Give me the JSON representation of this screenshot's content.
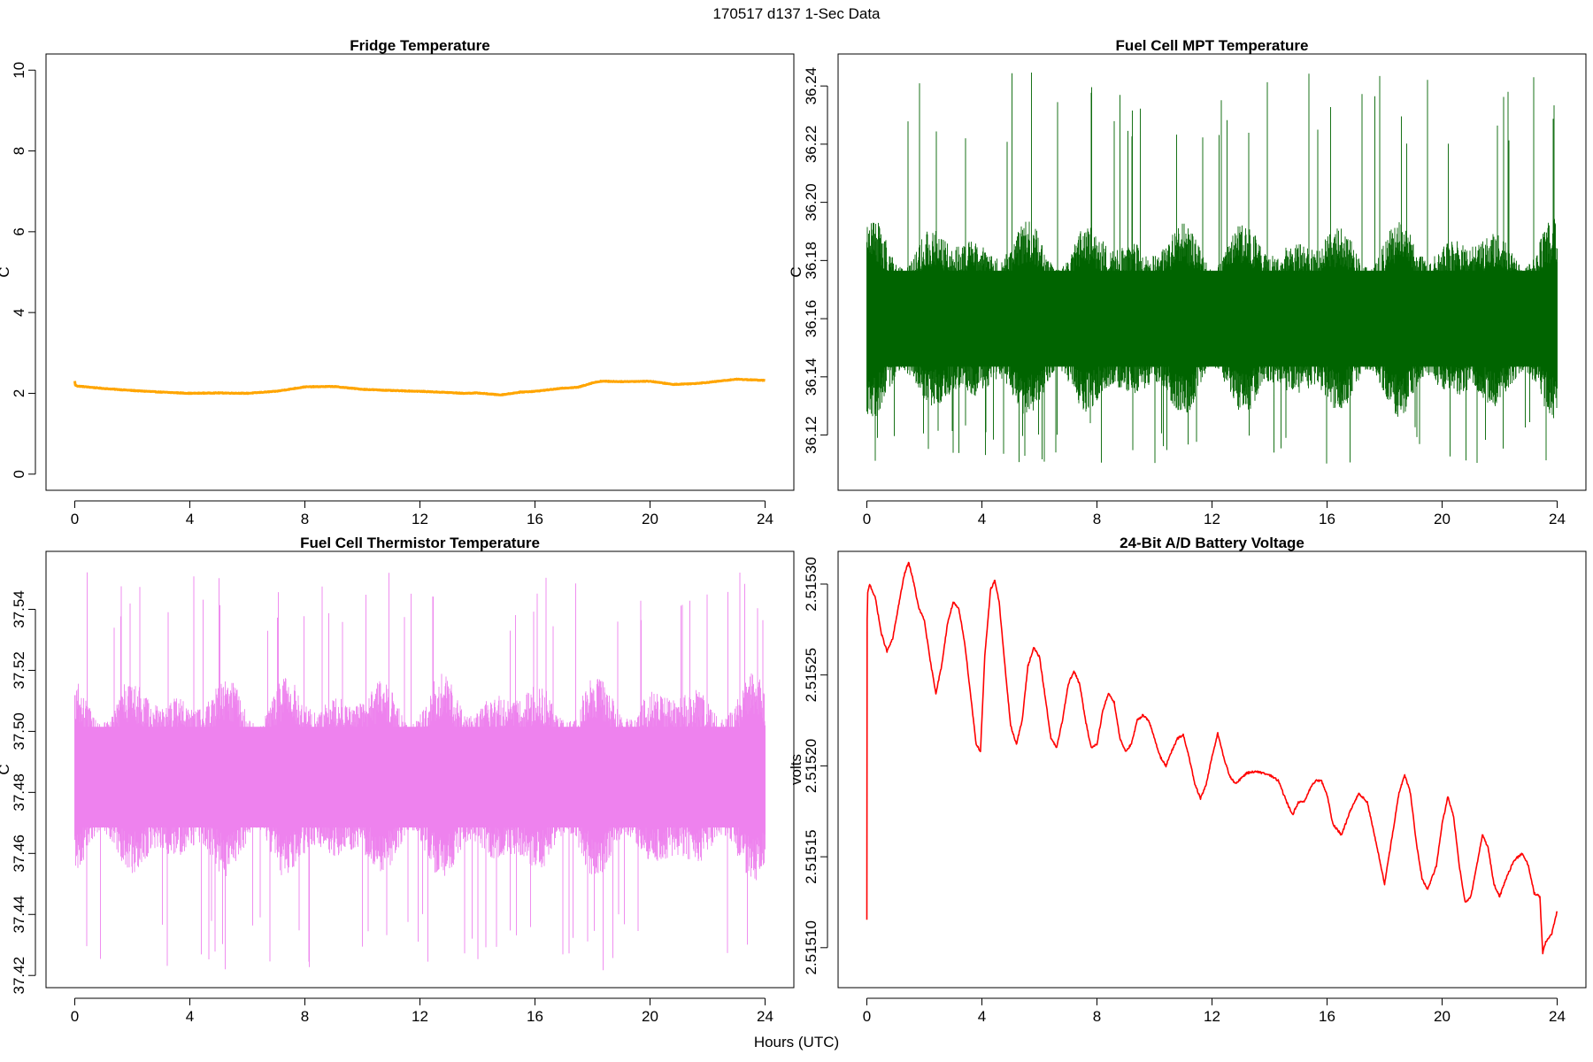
{
  "page": {
    "title": "170517   d137   1-Sec Data",
    "xlabel": "Hours (UTC)"
  },
  "chart_data": [
    {
      "type": "line",
      "title": "Fridge Temperature",
      "ylabel": "C",
      "xlabel": "",
      "color": "#FFA500",
      "xlim": [
        -1,
        25
      ],
      "ylim": [
        -0.4,
        10.4
      ],
      "xticks": [
        "0",
        "4",
        "8",
        "12",
        "16",
        "20",
        "24"
      ],
      "yticks": [
        "0",
        "2",
        "4",
        "6",
        "8",
        "10"
      ],
      "noise": 0.008,
      "grid": false,
      "series": [
        {
          "x": [
            0,
            0.02,
            0.1,
            1,
            2,
            3,
            4,
            5,
            6,
            7,
            8,
            9,
            10,
            11,
            12,
            13,
            13.5,
            14,
            14.8,
            15.5,
            16,
            17,
            17.5,
            18,
            18.3,
            19,
            20,
            20.8,
            21.5,
            22,
            23,
            24
          ],
          "y": [
            2.3,
            2.2,
            2.18,
            2.12,
            2.07,
            2.03,
            2.0,
            2.01,
            2.0,
            2.05,
            2.16,
            2.17,
            2.1,
            2.07,
            2.05,
            2.02,
            2.0,
            2.01,
            1.96,
            2.03,
            2.05,
            2.13,
            2.15,
            2.26,
            2.3,
            2.29,
            2.3,
            2.22,
            2.24,
            2.27,
            2.35,
            2.32
          ]
        }
      ]
    },
    {
      "type": "line",
      "title": "Fuel Cell MPT Temperature",
      "ylabel": "C",
      "xlabel": "",
      "color": "#006400",
      "xlim": [
        -1,
        25
      ],
      "ylim": [
        36.101,
        36.251
      ],
      "xticks": [
        "0",
        "4",
        "8",
        "12",
        "16",
        "20",
        "24"
      ],
      "yticks": [
        "36.12",
        "36.14",
        "36.16",
        "36.18",
        "36.20",
        "36.22",
        "36.24"
      ],
      "center": 36.16,
      "noise_amplitude": 0.03,
      "noise_range": [
        36.11,
        36.245
      ],
      "grid": false,
      "series": []
    },
    {
      "type": "line",
      "title": "Fuel Cell Thermistor Temperature",
      "ylabel": "C",
      "xlabel": "",
      "color": "#EE82EE",
      "xlim": [
        -1,
        25
      ],
      "ylim": [
        37.416,
        37.559
      ],
      "xticks": [
        "0",
        "4",
        "8",
        "12",
        "16",
        "20",
        "24"
      ],
      "yticks": [
        "37.42",
        "37.44",
        "37.46",
        "37.48",
        "37.50",
        "37.52",
        "37.54"
      ],
      "center": 37.485,
      "noise_amplitude": 0.03,
      "noise_range": [
        37.421,
        37.553
      ],
      "grid": false,
      "series": []
    },
    {
      "type": "line",
      "title": "24-Bit A/D Battery Voltage",
      "ylabel": "volts",
      "xlabel": "",
      "color": "#FF0000",
      "xlim": [
        -1,
        25
      ],
      "ylim": [
        2.515078,
        2.515318
      ],
      "xticks": [
        "0",
        "4",
        "8",
        "12",
        "16",
        "20",
        "24"
      ],
      "yticks": [
        "2.51510",
        "2.51515",
        "2.51520",
        "2.51525",
        "2.51530"
      ],
      "noise": 6e-07,
      "grid": false,
      "series": [
        {
          "x": [
            0,
            0.01,
            0.03,
            0.1,
            0.3,
            0.5,
            0.7,
            0.9,
            1.1,
            1.3,
            1.45,
            1.6,
            1.8,
            2.0,
            2.2,
            2.4,
            2.6,
            2.8,
            3.0,
            3.2,
            3.4,
            3.6,
            3.8,
            3.95,
            4.1,
            4.3,
            4.45,
            4.6,
            4.8,
            5.0,
            5.2,
            5.4,
            5.6,
            5.8,
            6.0,
            6.2,
            6.4,
            6.6,
            6.8,
            7.0,
            7.2,
            7.4,
            7.6,
            7.8,
            8.0,
            8.2,
            8.4,
            8.6,
            8.8,
            9.0,
            9.2,
            9.4,
            9.6,
            9.8,
            10.0,
            10.2,
            10.4,
            10.6,
            10.8,
            11.0,
            11.2,
            11.4,
            11.6,
            11.8,
            12.0,
            12.2,
            12.4,
            12.6,
            12.8,
            13.0,
            13.2,
            13.5,
            14.0,
            14.3,
            14.6,
            14.8,
            15.0,
            15.2,
            15.4,
            15.6,
            15.8,
            16.0,
            16.2,
            16.5,
            16.8,
            17.1,
            17.4,
            17.7,
            18.0,
            18.3,
            18.5,
            18.7,
            18.9,
            19.1,
            19.3,
            19.5,
            19.8,
            20.0,
            20.2,
            20.4,
            20.6,
            20.8,
            21.0,
            21.2,
            21.4,
            21.6,
            21.8,
            22.0,
            22.2,
            22.5,
            22.8,
            23.0,
            23.2,
            23.4,
            23.45,
            23.5,
            23.6,
            23.8,
            24.0
          ],
          "y": [
            2.515115,
            2.51528,
            2.515295,
            2.5153,
            2.515292,
            2.515273,
            2.515263,
            2.51527,
            2.515288,
            2.515305,
            2.515312,
            2.515303,
            2.515287,
            2.51528,
            2.515258,
            2.51524,
            2.515255,
            2.515278,
            2.51529,
            2.515286,
            2.515268,
            2.51524,
            2.515212,
            2.515208,
            2.51526,
            2.515297,
            2.515302,
            2.51529,
            2.515255,
            2.515222,
            2.515212,
            2.515225,
            2.515255,
            2.515265,
            2.51526,
            2.515238,
            2.515215,
            2.51521,
            2.515225,
            2.515245,
            2.515252,
            2.515245,
            2.515225,
            2.51521,
            2.515212,
            2.51523,
            2.51524,
            2.515235,
            2.515215,
            2.515208,
            2.515212,
            2.515225,
            2.515228,
            2.515225,
            2.515215,
            2.515205,
            2.5152,
            2.515208,
            2.515215,
            2.515217,
            2.515205,
            2.51519,
            2.515182,
            2.51519,
            2.515205,
            2.515218,
            2.515205,
            2.515195,
            2.51519,
            2.515193,
            2.515196,
            2.515197,
            2.515195,
            2.515192,
            2.51518,
            2.515173,
            2.51518,
            2.51518,
            2.515187,
            2.515192,
            2.515192,
            2.515184,
            2.515168,
            2.515162,
            2.515175,
            2.515185,
            2.51518,
            2.515158,
            2.515135,
            2.515165,
            2.515185,
            2.515195,
            2.515185,
            2.515158,
            2.515138,
            2.515132,
            2.515145,
            2.515168,
            2.515183,
            2.515172,
            2.515145,
            2.515125,
            2.515128,
            2.515145,
            2.515162,
            2.515155,
            2.515135,
            2.515128,
            2.515137,
            2.515148,
            2.515152,
            2.515145,
            2.51513,
            2.515128,
            2.515112,
            2.515097,
            2.515103,
            2.515107,
            2.51512
          ]
        }
      ]
    }
  ]
}
